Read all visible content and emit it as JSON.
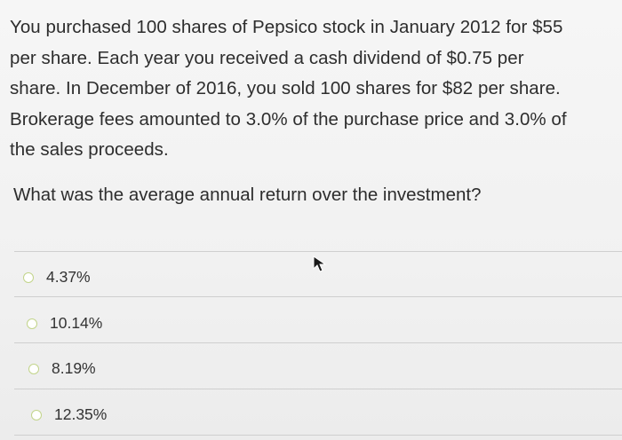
{
  "question": {
    "lines": [
      "You purchased 100 shares of Pepsico stock in January 2012 for $55",
      "per share.  Each year you received a cash dividend of $0.75 per",
      "share.  In December of 2016, you sold 100 shares for $82 per share.",
      "Brokerage fees amounted to 3.0% of the purchase price and 3.0% of",
      "the sales proceeds."
    ],
    "prompt": "What was the average annual return over the investment?"
  },
  "options": [
    {
      "label": "4.37%"
    },
    {
      "label": "10.14%"
    },
    {
      "label": "8.19%"
    },
    {
      "label": "12.35%"
    }
  ],
  "colors": {
    "radio_border": "#c2d48a",
    "text": "#2d2d2d"
  },
  "icons": {
    "cursor": "mouse-pointer-icon",
    "radio": "radio-circle-icon"
  }
}
